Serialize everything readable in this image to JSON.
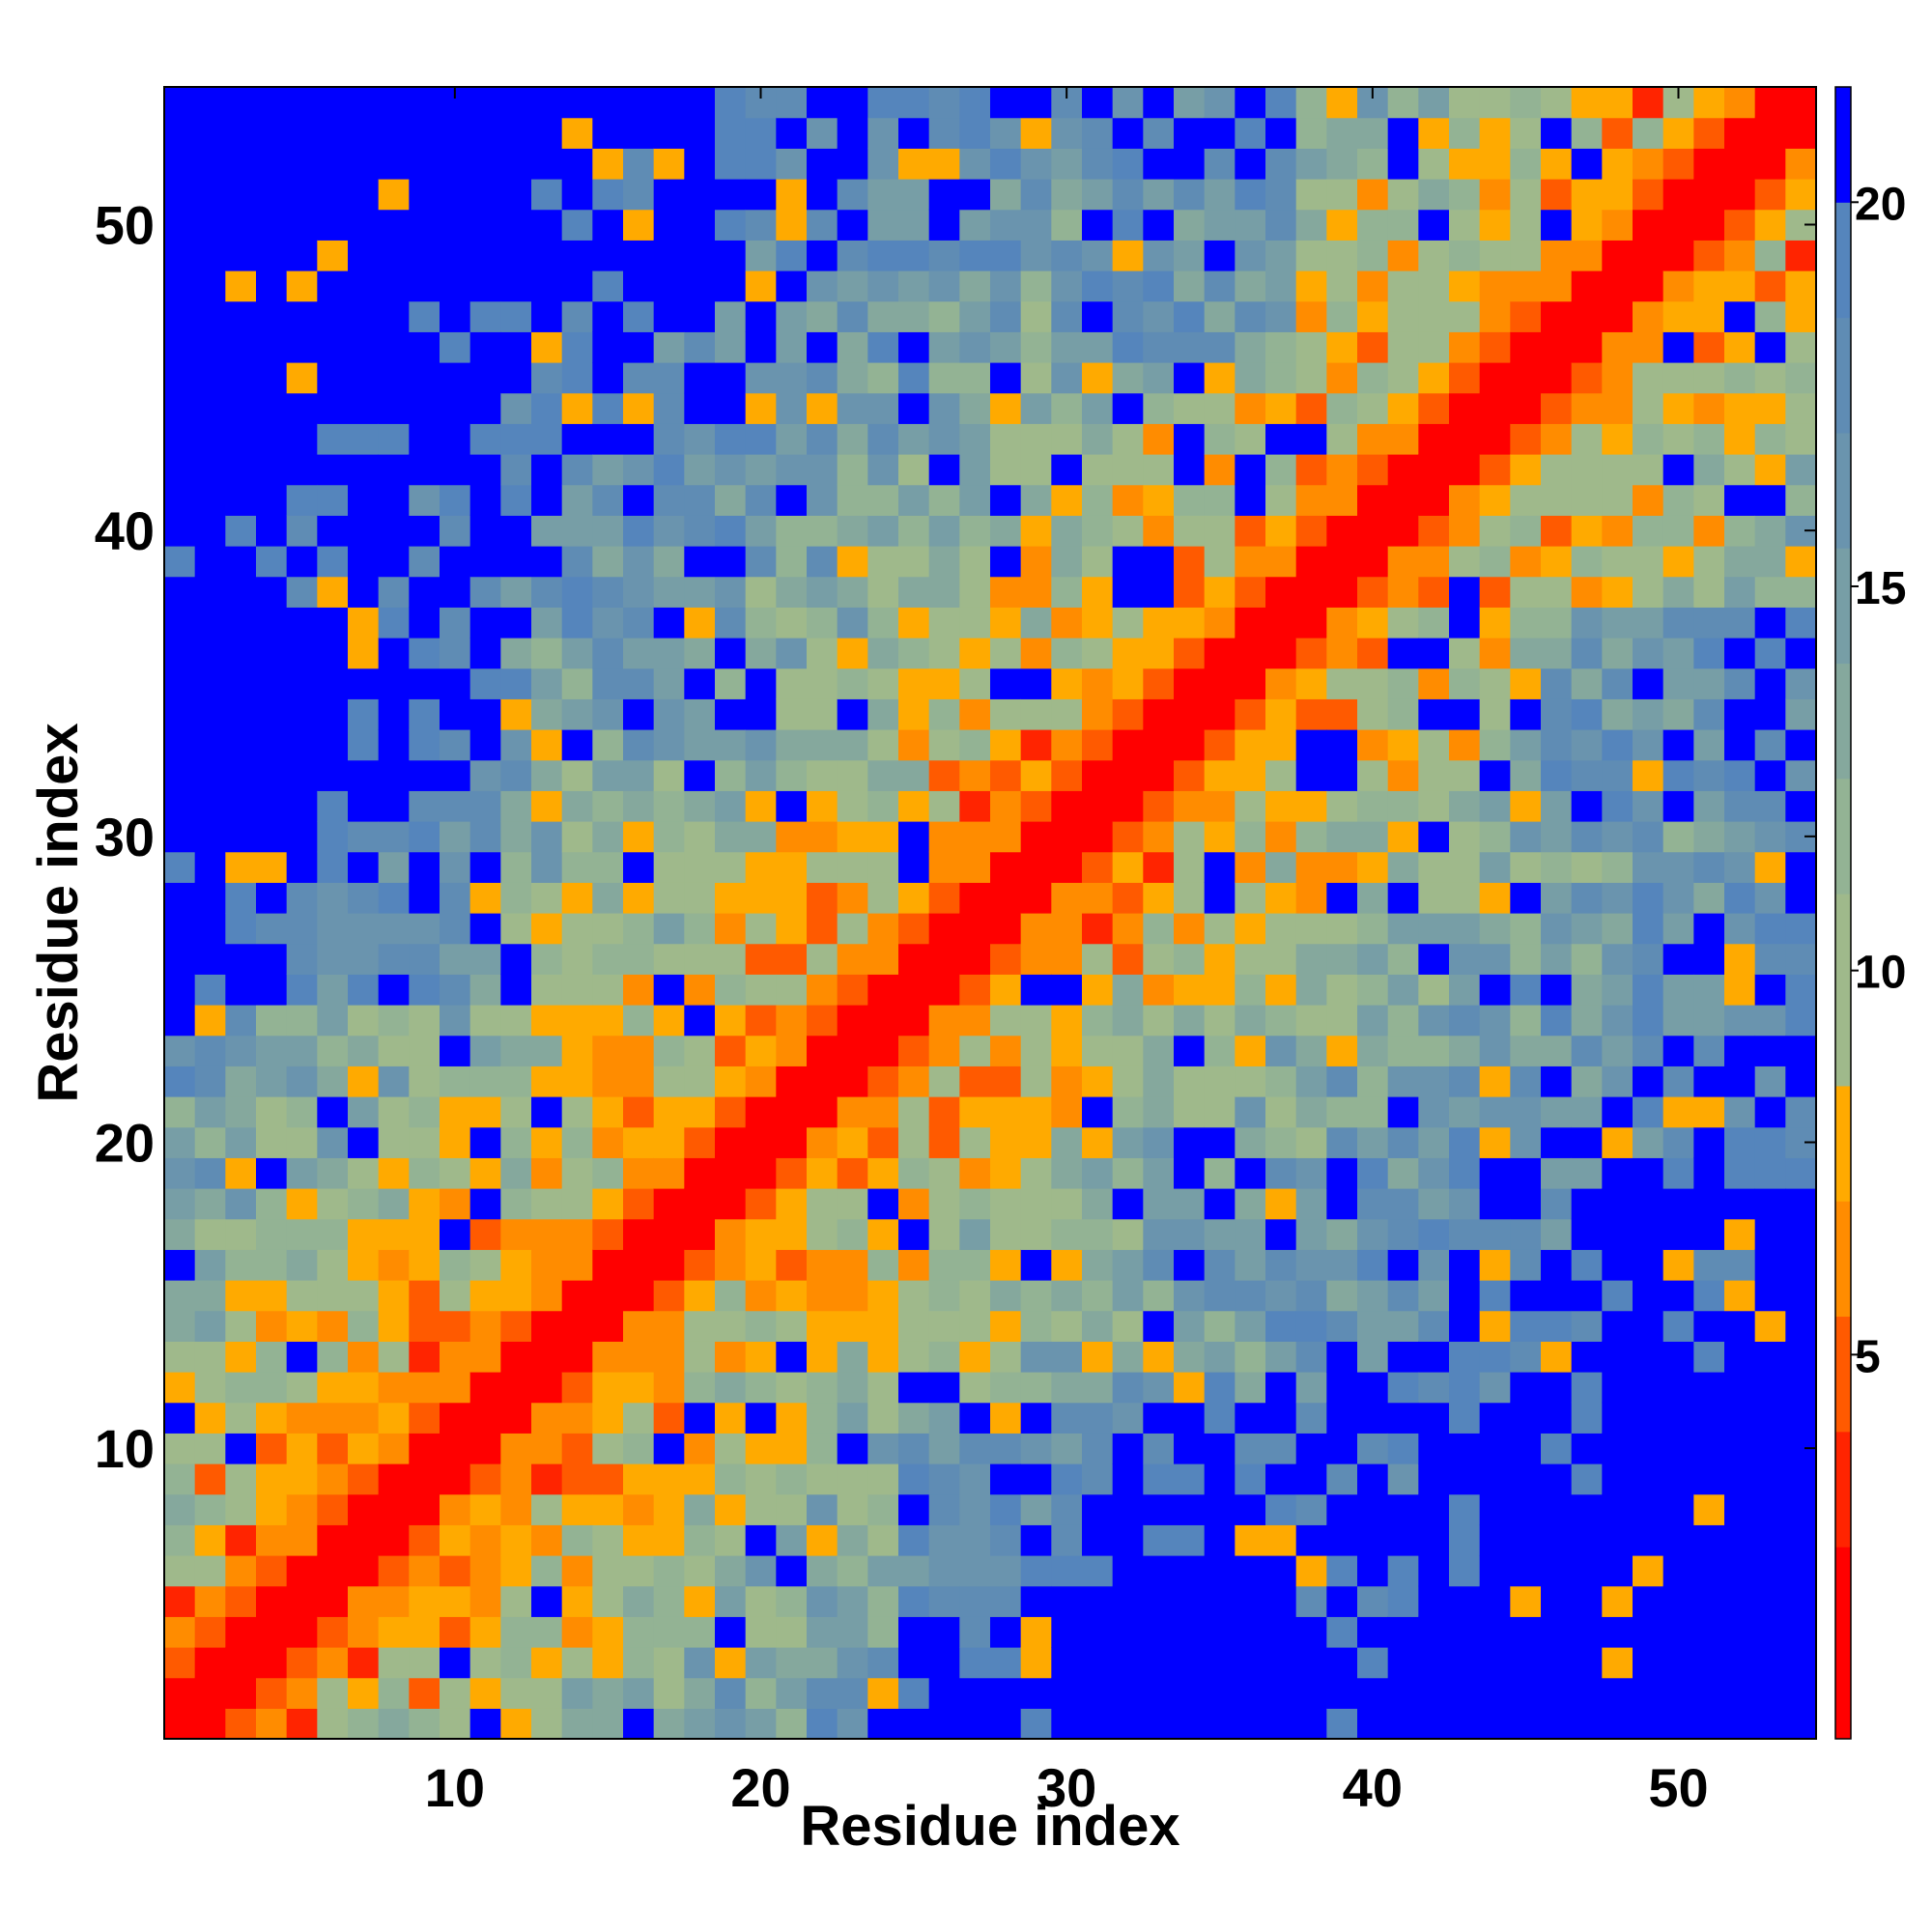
{
  "chart_data": {
    "type": "heatmap",
    "xlabel": "Residue index",
    "ylabel": "Residue index",
    "n_residues": 54,
    "x_ticks": [
      10,
      20,
      30,
      40,
      50
    ],
    "y_ticks": [
      10,
      20,
      30,
      40,
      50
    ],
    "colorbar": {
      "ticks": [
        5,
        10,
        15,
        20
      ],
      "range": [
        0,
        21.5
      ],
      "bins": [
        {
          "max": 2.5,
          "color": "#ff0000"
        },
        {
          "max": 4.0,
          "color": "#ff2400"
        },
        {
          "max": 5.5,
          "color": "#ff5a00"
        },
        {
          "max": 7.0,
          "color": "#ff8c00"
        },
        {
          "max": 8.5,
          "color": "#ffaa00"
        },
        {
          "max": 11.0,
          "color": "#9fb98b"
        },
        {
          "max": 12.5,
          "color": "#93b394"
        },
        {
          "max": 14.0,
          "color": "#85a89d"
        },
        {
          "max": 15.5,
          "color": "#779ea6"
        },
        {
          "max": 17.0,
          "color": "#6a94ae"
        },
        {
          "max": 18.5,
          "color": "#5f8cb4"
        },
        {
          "max": 20.0,
          "color": "#5585bc"
        },
        {
          "max": 21.5,
          "color": "#0000ff"
        }
      ]
    },
    "matrix": "symmetric inter-residue distance map (values in colorbar units) with diagonal band at |i-j|<=1 ~ 1-2, |i-j|=2 ~ 4-6, |i-j|=3 ~ 6-8, grading to >20 far from diagonal"
  }
}
